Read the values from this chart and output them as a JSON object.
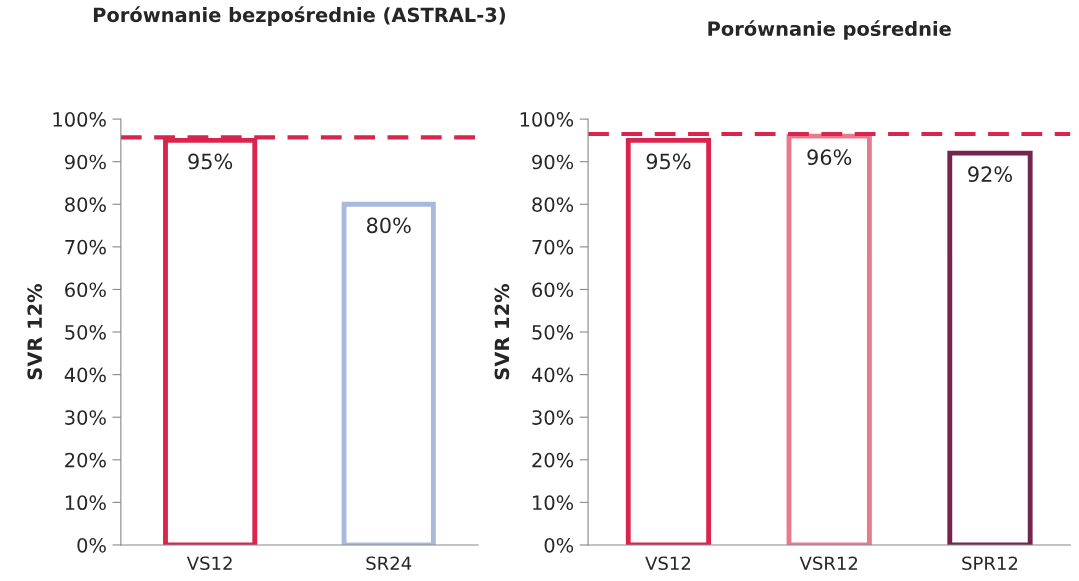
{
  "chart_data": [
    {
      "type": "bar",
      "title": "Porównanie bezpośrednie (ASTRAL-3)",
      "ylabel": "SVR 12%",
      "categories": [
        "VS12",
        "SR24"
      ],
      "values": [
        95,
        80
      ],
      "colors": [
        "#d9254e",
        "#a9b9db"
      ],
      "data_labels": true,
      "value_labels": [
        "95%",
        "80%"
      ],
      "ylim": [
        0,
        100
      ],
      "yticks": [
        {
          "value": 0,
          "label": "0%"
        },
        {
          "value": 10,
          "label": "10%"
        },
        {
          "value": 20,
          "label": "20%"
        },
        {
          "value": 30,
          "label": "30%"
        },
        {
          "value": 40,
          "label": "40%"
        },
        {
          "value": 50,
          "label": "50%"
        },
        {
          "value": 60,
          "label": "60%"
        },
        {
          "value": 70,
          "label": "70%"
        },
        {
          "value": 80,
          "label": "80%"
        },
        {
          "value": 90,
          "label": "90%"
        },
        {
          "value": 100,
          "label": "100%"
        }
      ],
      "grid": false,
      "legend": false,
      "ref_lines": [
        {
          "axis": "y",
          "value": 95.7,
          "color": "#d9254e",
          "line_style": "dashed"
        }
      ]
    },
    {
      "type": "bar",
      "title": "Porównanie pośrednie",
      "ylabel": "SVR 12%",
      "categories": [
        "VS12",
        "VSR12",
        "SPR12"
      ],
      "values": [
        95,
        96,
        92
      ],
      "colors": [
        "#d9254e",
        "#e77b8e",
        "#73254e"
      ],
      "data_labels": true,
      "value_labels": [
        "95%",
        "96%",
        "92%"
      ],
      "ylim": [
        0,
        100
      ],
      "yticks": [
        {
          "value": 0,
          "label": "0%"
        },
        {
          "value": 10,
          "label": "10%"
        },
        {
          "value": 20,
          "label": "20%"
        },
        {
          "value": 30,
          "label": "30%"
        },
        {
          "value": 40,
          "label": "40%"
        },
        {
          "value": 50,
          "label": "50%"
        },
        {
          "value": 60,
          "label": "60%"
        },
        {
          "value": 70,
          "label": "70%"
        },
        {
          "value": 80,
          "label": "80%"
        },
        {
          "value": 90,
          "label": "90%"
        },
        {
          "value": 100,
          "label": "100%"
        }
      ],
      "grid": false,
      "legend": false,
      "ref_lines": [
        {
          "axis": "y",
          "value": 96.5,
          "color": "#d9254e",
          "line_style": "dashed"
        }
      ]
    }
  ]
}
